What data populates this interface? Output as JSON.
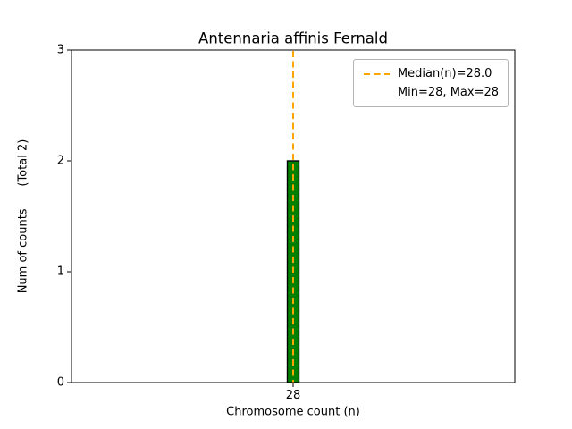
{
  "chart_data": {
    "type": "bar",
    "title": "Antennaria affinis Fernald",
    "xlabel": "Chromosome count (n)",
    "ylabel": "Num of counts      (Total 2)",
    "categories": [
      "28"
    ],
    "values": [
      2
    ],
    "ylim": [
      0,
      3
    ],
    "yticks": [
      0,
      1,
      2,
      3
    ],
    "median_n": 28.0,
    "min_n": 28,
    "max_n": 28,
    "total_counts": 2,
    "legend": [
      "Median(n)=28.0",
      "Min=28, Max=28"
    ],
    "legend_position": "upper right",
    "grid": false,
    "colors": {
      "bar_fill": "#008000",
      "bar_edge": "#000000",
      "median_line": "#ffa500",
      "spine": "#000000",
      "text": "#000000",
      "legend_border": "#b3b3b3",
      "background": "#ffffff"
    }
  }
}
